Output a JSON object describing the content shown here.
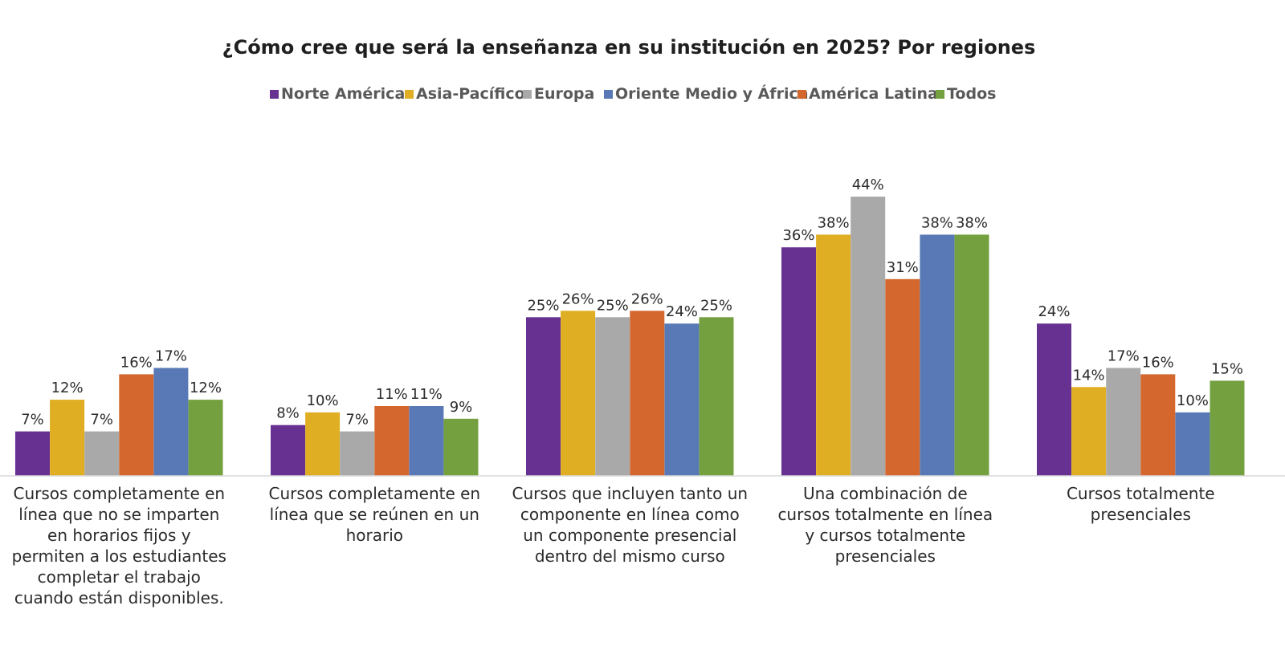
{
  "chart_data": {
    "type": "bar",
    "title": "¿Cómo cree que será la enseñanza en su institución en 2025? Por regiones",
    "xlabel": "",
    "ylabel": "",
    "ylim": [
      0,
      50
    ],
    "value_suffix": "%",
    "grid": false,
    "legend_position": "top",
    "categories": [
      [
        "Cursos completamente en",
        "línea que no se imparten",
        "en horarios fijos y",
        "permiten a los estudiantes",
        "completar el trabajo",
        "cuando están disponibles."
      ],
      [
        "Cursos completamente en",
        "línea que se reúnen en un",
        "horario"
      ],
      [
        "Cursos que incluyen tanto un",
        "componente en línea como",
        "un componente presencial",
        "dentro del mismo curso"
      ],
      [
        "Una combinación de",
        "cursos totalmente en línea",
        "y cursos totalmente",
        "presenciales"
      ],
      [
        "Cursos totalmente",
        "presenciales"
      ]
    ],
    "series": [
      {
        "name": "Norte América",
        "color": "#673192",
        "values": [
          7,
          8,
          25,
          36,
          24
        ]
      },
      {
        "name": "Asia-Pacífico",
        "color": "#E0AE22",
        "values": [
          12,
          10,
          26,
          38,
          14
        ]
      },
      {
        "name": "Europa",
        "color": "#A9A9A9",
        "values": [
          7,
          7,
          25,
          44,
          17
        ]
      },
      {
        "name": "Oriente Medio y África",
        "color": "#5879B5",
        "values": [
          17,
          11,
          24,
          38,
          10
        ]
      },
      {
        "name": "América Latina",
        "color": "#D3672E",
        "values": [
          16,
          11,
          26,
          31,
          16
        ]
      },
      {
        "name": "Todos",
        "color": "#74A040",
        "values": [
          12,
          9,
          25,
          38,
          15
        ]
      }
    ],
    "bar_order": [
      0,
      1,
      2,
      4,
      3,
      5
    ]
  }
}
